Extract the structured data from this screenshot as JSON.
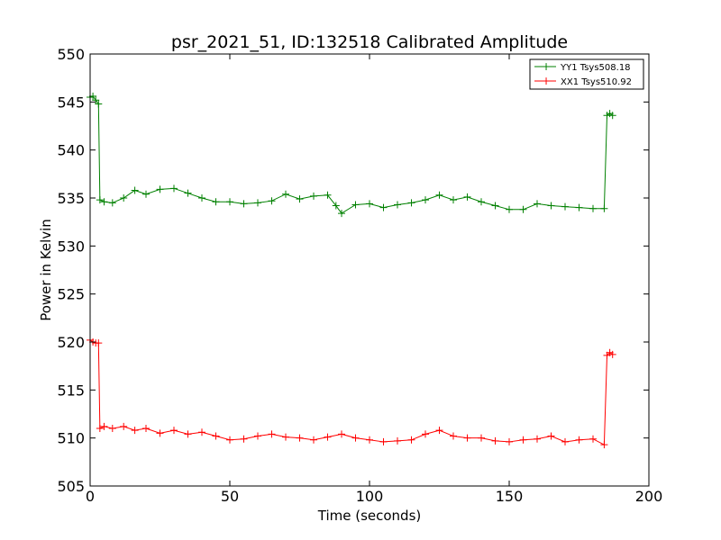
{
  "chart_data": {
    "type": "line",
    "title": "psr_2021_51, ID:132518 Calibrated Amplitude",
    "xlabel": "Time (seconds)",
    "ylabel": "Power in Kelvin",
    "xlim": [
      0,
      200
    ],
    "ylim": [
      505,
      550
    ],
    "xticks": [
      "0",
      "50",
      "100",
      "150",
      "200"
    ],
    "yticks": [
      "505",
      "510",
      "515",
      "520",
      "525",
      "530",
      "535",
      "540",
      "545",
      "550"
    ],
    "grid": false,
    "legend_position": "top-right",
    "marker": "+",
    "series": [
      {
        "name": "YY1 Tsys508.18",
        "color": "#008000",
        "x": [
          0,
          1,
          2,
          3,
          3.5,
          5,
          8,
          12,
          16,
          20,
          25,
          30,
          35,
          40,
          45,
          50,
          55,
          60,
          65,
          70,
          75,
          80,
          85,
          88,
          90,
          95,
          100,
          105,
          110,
          115,
          120,
          125,
          130,
          135,
          140,
          145,
          150,
          155,
          160,
          165,
          170,
          175,
          180,
          184,
          185,
          186,
          187
        ],
        "y": [
          545.5,
          545.6,
          545.2,
          544.8,
          534.8,
          534.6,
          534.5,
          535.0,
          535.8,
          535.4,
          535.9,
          536.0,
          535.5,
          535.0,
          534.6,
          534.6,
          534.4,
          534.5,
          534.7,
          535.4,
          534.9,
          535.2,
          535.3,
          534.2,
          533.4,
          534.3,
          534.4,
          534.0,
          534.3,
          534.5,
          534.8,
          535.3,
          534.8,
          535.1,
          534.6,
          534.2,
          533.8,
          533.8,
          534.4,
          534.2,
          534.1,
          534.0,
          533.9,
          533.9,
          543.6,
          543.8,
          543.6
        ]
      },
      {
        "name": "XX1 Tsys510.92",
        "color": "#ff0000",
        "x": [
          0,
          1,
          2,
          3,
          3.5,
          5,
          8,
          12,
          16,
          20,
          25,
          30,
          35,
          40,
          45,
          50,
          55,
          60,
          65,
          70,
          75,
          80,
          85,
          90,
          95,
          100,
          105,
          110,
          115,
          120,
          125,
          130,
          135,
          140,
          145,
          150,
          155,
          160,
          165,
          170,
          175,
          180,
          184,
          185,
          186,
          187
        ],
        "y": [
          520.2,
          520.0,
          519.9,
          519.9,
          511.0,
          511.2,
          511.0,
          511.2,
          510.8,
          511.0,
          510.5,
          510.8,
          510.4,
          510.6,
          510.2,
          509.8,
          509.9,
          510.2,
          510.4,
          510.1,
          510.0,
          509.8,
          510.1,
          510.4,
          510.0,
          509.8,
          509.6,
          509.7,
          509.8,
          510.4,
          510.8,
          510.2,
          510.0,
          510.0,
          509.7,
          509.6,
          509.8,
          509.9,
          510.2,
          509.6,
          509.8,
          509.9,
          509.3,
          518.6,
          518.9,
          518.7
        ]
      }
    ]
  }
}
